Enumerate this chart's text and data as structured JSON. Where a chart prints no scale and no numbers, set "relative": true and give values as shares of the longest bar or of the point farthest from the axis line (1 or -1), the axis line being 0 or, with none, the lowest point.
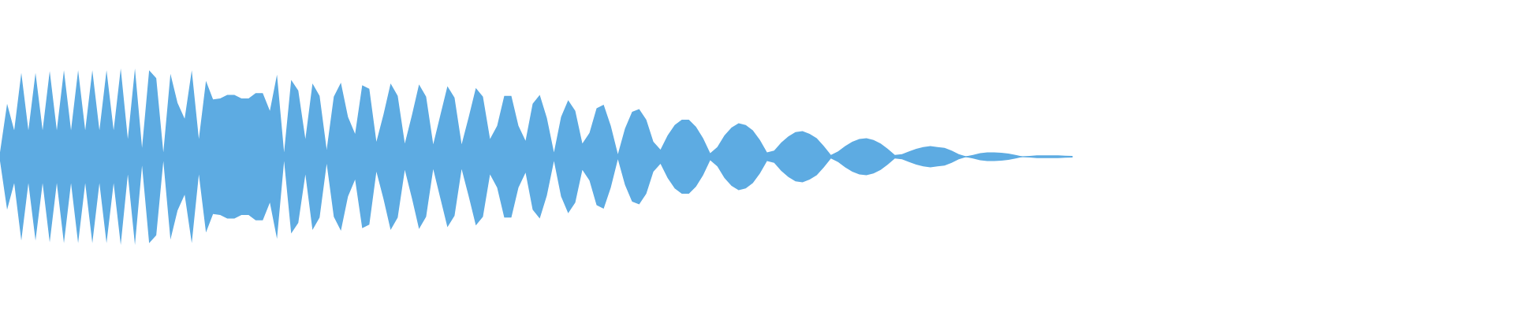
{
  "chart_data": {
    "type": "area",
    "relative": true,
    "categories": [
      null,
      null,
      null,
      null,
      null,
      null,
      null,
      null,
      null,
      null,
      null,
      null,
      null,
      null,
      null,
      null,
      null,
      null,
      null,
      null,
      null,
      null,
      null,
      null,
      null,
      null,
      null,
      null,
      null,
      null,
      null,
      null,
      null,
      null,
      null,
      null,
      null,
      null,
      null,
      null,
      null,
      null,
      null,
      null,
      null,
      null,
      null,
      null,
      null,
      null,
      null,
      null,
      null,
      null,
      null,
      null,
      null,
      null,
      null,
      null,
      null,
      null,
      null,
      null,
      null,
      null,
      null,
      null,
      null,
      null,
      null,
      null,
      null,
      null,
      null,
      null,
      null,
      null,
      null,
      null,
      null,
      null,
      null,
      null,
      null,
      null,
      null,
      null,
      null,
      null,
      null,
      null,
      null,
      null,
      null,
      null,
      null,
      null,
      null,
      null,
      null,
      null,
      null,
      null,
      null,
      null,
      null,
      null,
      null,
      null,
      null,
      null,
      null,
      null,
      null,
      null,
      null,
      null,
      null,
      null,
      null,
      null,
      null,
      null,
      null,
      null,
      null,
      null,
      null,
      null,
      null,
      null,
      null,
      null,
      null,
      null,
      null,
      null,
      null,
      null,
      null,
      null,
      null,
      null,
      null,
      null,
      null,
      null,
      null,
      null,
      null,
      null
    ],
    "series": [
      {
        "color": "#5dabe2",
        "values": [
          0.05,
          0.6,
          0.3,
          0.95,
          0.3,
          0.95,
          0.3,
          0.97,
          0.3,
          0.98,
          0.3,
          0.98,
          0.3,
          0.98,
          0.3,
          0.98,
          0.3,
          1,
          0.2,
          1,
          0.1,
          0.98,
          0.89,
          0.05,
          0.94,
          0.61,
          0.43,
          0.98,
          0.2,
          0.86,
          0.65,
          0.66,
          0.7,
          0.7,
          0.66,
          0.66,
          0.72,
          0.72,
          0.52,
          0.93,
          0.05,
          0.87,
          0.75,
          0.2,
          0.83,
          0.69,
          0.08,
          0.68,
          0.84,
          0.45,
          0.26,
          0.81,
          0.77,
          0.17,
          0.48,
          0.83,
          0.69,
          0.15,
          0.47,
          0.82,
          0.68,
          0.14,
          0.47,
          0.8,
          0.67,
          0.14,
          0.45,
          0.78,
          0.68,
          0.2,
          0.35,
          0.69,
          0.69,
          0.35,
          0.18,
          0.6,
          0.7,
          0.44,
          0.05,
          0.45,
          0.64,
          0.52,
          0.15,
          0.27,
          0.55,
          0.59,
          0.35,
          0.03,
          0.32,
          0.51,
          0.54,
          0.42,
          0.17,
          0.08,
          0.24,
          0.36,
          0.42,
          0.42,
          0.34,
          0.21,
          0.04,
          0.11,
          0.24,
          0.33,
          0.38,
          0.36,
          0.3,
          0.19,
          0.05,
          0.07,
          0.16,
          0.23,
          0.28,
          0.29,
          0.26,
          0.21,
          0.12,
          0.02,
          0.06,
          0.12,
          0.17,
          0.2,
          0.21,
          0.19,
          0.15,
          0.09,
          0.02,
          0.03,
          0.06,
          0.09,
          0.11,
          0.12,
          0.11,
          0.1,
          0.07,
          0.03,
          0.005,
          0.02,
          0.04,
          0.05,
          0.05,
          0.045,
          0.035,
          0.02,
          0.002,
          0.01,
          0.015,
          0.015,
          0.015,
          0.015,
          0.012,
          0.01
        ]
      },
      {
        "color": "#5dabe2",
        "values": [
          -0.05,
          -0.6,
          -0.3,
          -0.95,
          -0.3,
          -0.95,
          -0.3,
          -0.97,
          -0.3,
          -0.98,
          -0.3,
          -0.98,
          -0.3,
          -0.98,
          -0.3,
          -0.98,
          -0.3,
          -1,
          -0.2,
          -1,
          -0.1,
          -0.98,
          -0.89,
          -0.05,
          -0.94,
          -0.61,
          -0.43,
          -0.98,
          -0.2,
          -0.86,
          -0.65,
          -0.66,
          -0.7,
          -0.7,
          -0.66,
          -0.66,
          -0.72,
          -0.72,
          -0.52,
          -0.93,
          -0.05,
          -0.87,
          -0.75,
          -0.2,
          -0.83,
          -0.69,
          -0.08,
          -0.68,
          -0.84,
          -0.45,
          -0.26,
          -0.81,
          -0.77,
          -0.17,
          -0.48,
          -0.83,
          -0.69,
          -0.15,
          -0.47,
          -0.82,
          -0.68,
          -0.14,
          -0.47,
          -0.8,
          -0.67,
          -0.14,
          -0.45,
          -0.78,
          -0.68,
          -0.2,
          -0.35,
          -0.69,
          -0.69,
          -0.35,
          -0.18,
          -0.6,
          -0.7,
          -0.44,
          -0.05,
          -0.45,
          -0.64,
          -0.52,
          -0.15,
          -0.27,
          -0.55,
          -0.59,
          -0.35,
          -0.03,
          -0.32,
          -0.51,
          -0.54,
          -0.42,
          -0.17,
          -0.08,
          -0.24,
          -0.36,
          -0.42,
          -0.42,
          -0.34,
          -0.21,
          -0.04,
          -0.11,
          -0.24,
          -0.33,
          -0.38,
          -0.36,
          -0.3,
          -0.19,
          -0.05,
          -0.07,
          -0.16,
          -0.23,
          -0.28,
          -0.29,
          -0.26,
          -0.21,
          -0.12,
          -0.02,
          -0.06,
          -0.12,
          -0.17,
          -0.2,
          -0.21,
          -0.19,
          -0.15,
          -0.09,
          -0.02,
          -0.03,
          -0.06,
          -0.09,
          -0.11,
          -0.12,
          -0.11,
          -0.1,
          -0.07,
          -0.03,
          -0.005,
          -0.02,
          -0.04,
          -0.05,
          -0.05,
          -0.045,
          -0.035,
          -0.02,
          -0.002,
          -0.01,
          -0.015,
          -0.015,
          -0.015,
          -0.015,
          -0.012,
          -0.01
        ]
      }
    ]
  }
}
